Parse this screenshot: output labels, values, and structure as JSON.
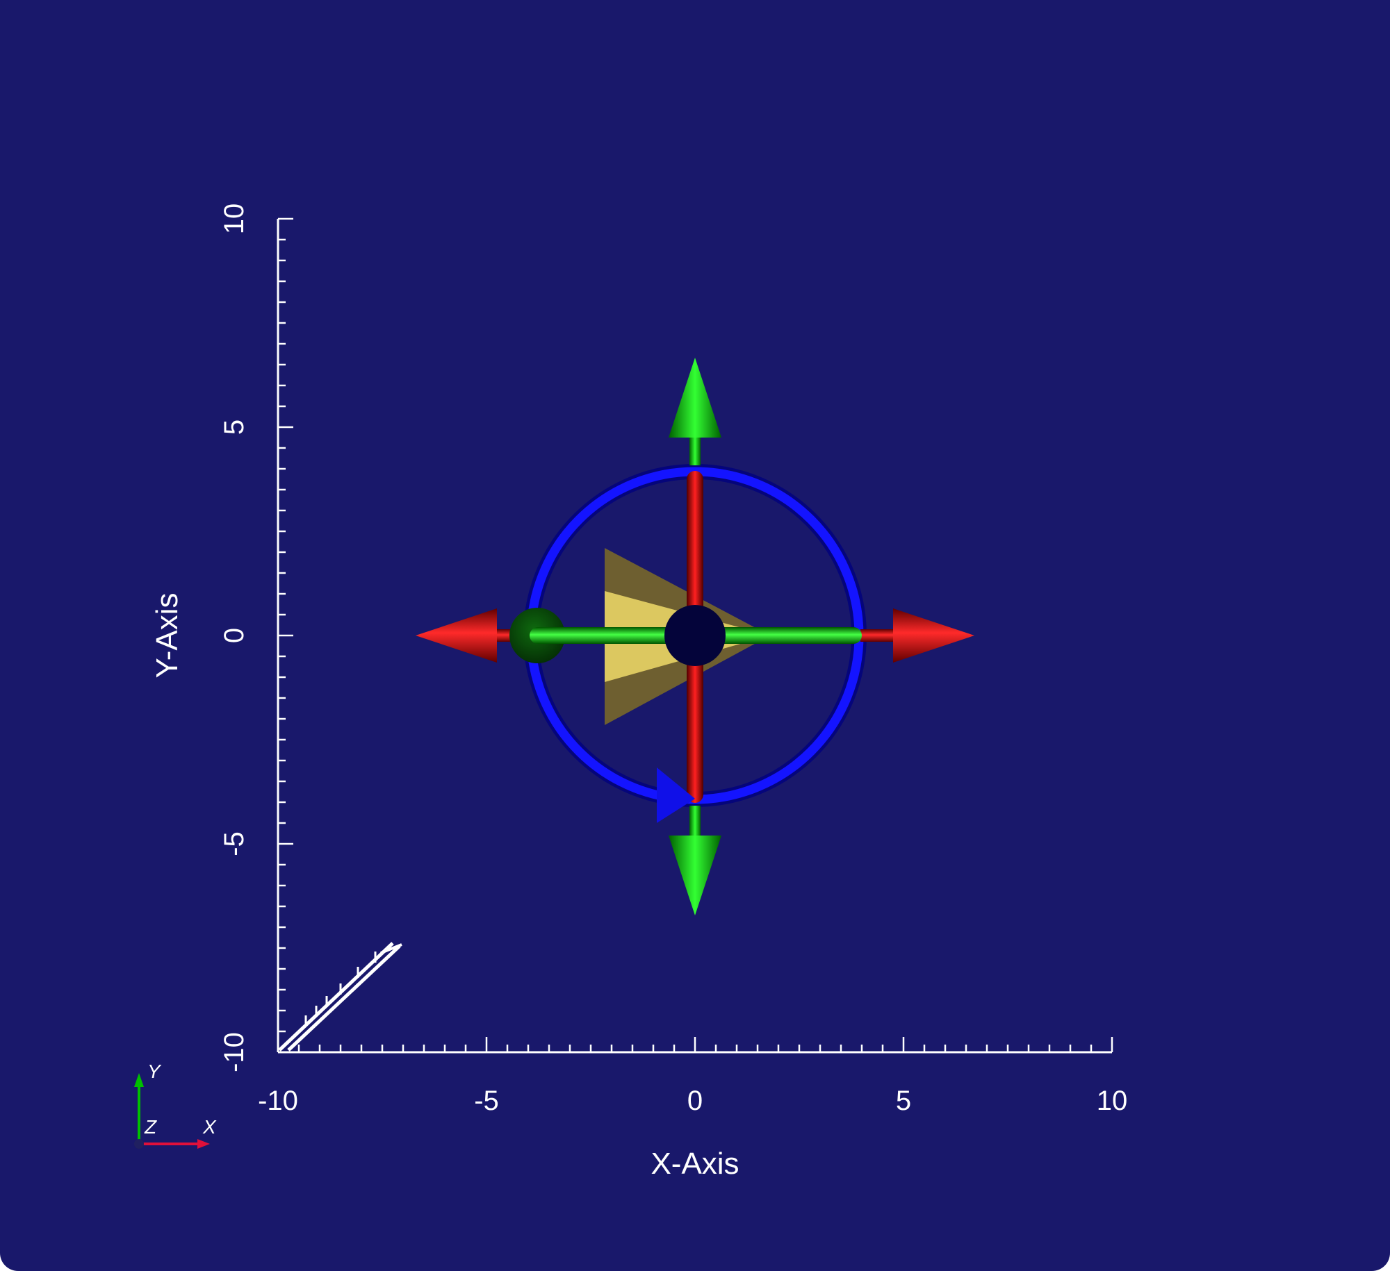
{
  "viewport": {
    "background": "#19186b",
    "text_color": "#ffffff"
  },
  "x_axis": {
    "title": "X-Axis",
    "range": [
      -10,
      10
    ],
    "major_ticks": [
      -10,
      -5,
      0,
      5,
      10
    ],
    "tick_labels": [
      "-10",
      "-5",
      "0",
      "5",
      "10"
    ],
    "minor_step": 1
  },
  "y_axis": {
    "title": "Y-Axis",
    "range": [
      -10,
      10
    ],
    "major_ticks": [
      -10,
      -5,
      0,
      5,
      10
    ],
    "tick_labels": [
      "-10",
      "-5",
      "0",
      "5",
      "10"
    ],
    "minor_step": 1
  },
  "scene_objects": {
    "ring": {
      "shape": "torus",
      "center": [
        0,
        0
      ],
      "radius": 3.9,
      "color": "#0000ff"
    },
    "x_rotation_handle": {
      "shape": "cylinder",
      "from": [
        -3.9,
        0
      ],
      "to": [
        3.9,
        0
      ],
      "color": "#00cc00"
    },
    "y_rotation_handle": {
      "shape": "cylinder",
      "from": [
        0,
        -3.9
      ],
      "to": [
        0,
        3.9
      ],
      "color": "#cc0000"
    },
    "x_translate_arrows": {
      "shape": "arrow",
      "tips": [
        -6.7,
        6.7
      ],
      "color": "#e00000"
    },
    "y_translate_arrows": {
      "shape": "arrow",
      "tips": [
        6.6,
        -6.6
      ],
      "color": "#00b000"
    },
    "cone": {
      "shape": "cone",
      "apex": [
        1.8,
        0
      ],
      "base_x": -2.2,
      "base_half_height": 2.1,
      "color": "#d8c45a"
    },
    "center_sphere": {
      "shape": "sphere",
      "center": [
        0,
        0
      ],
      "radius": 0.75,
      "color": "#05053a"
    },
    "left_sphere": {
      "shape": "sphere",
      "center": [
        -3.8,
        0
      ],
      "radius": 0.65,
      "color": "#0a4a0a"
    },
    "blue_cone_marker": {
      "shape": "cone",
      "center": [
        -0.4,
        -3.9
      ],
      "color": "#0000ee"
    },
    "streamline_arrow": {
      "shape": "line",
      "from": [
        -10,
        -10
      ],
      "to": [
        -7.1,
        -7.7
      ],
      "color": "#ffffff"
    }
  },
  "orientation_triad": {
    "labels": {
      "x": "X",
      "y": "Y",
      "z": "Z"
    },
    "colors": {
      "x": "#e0103a",
      "y": "#00c000",
      "z": "#202060"
    }
  }
}
